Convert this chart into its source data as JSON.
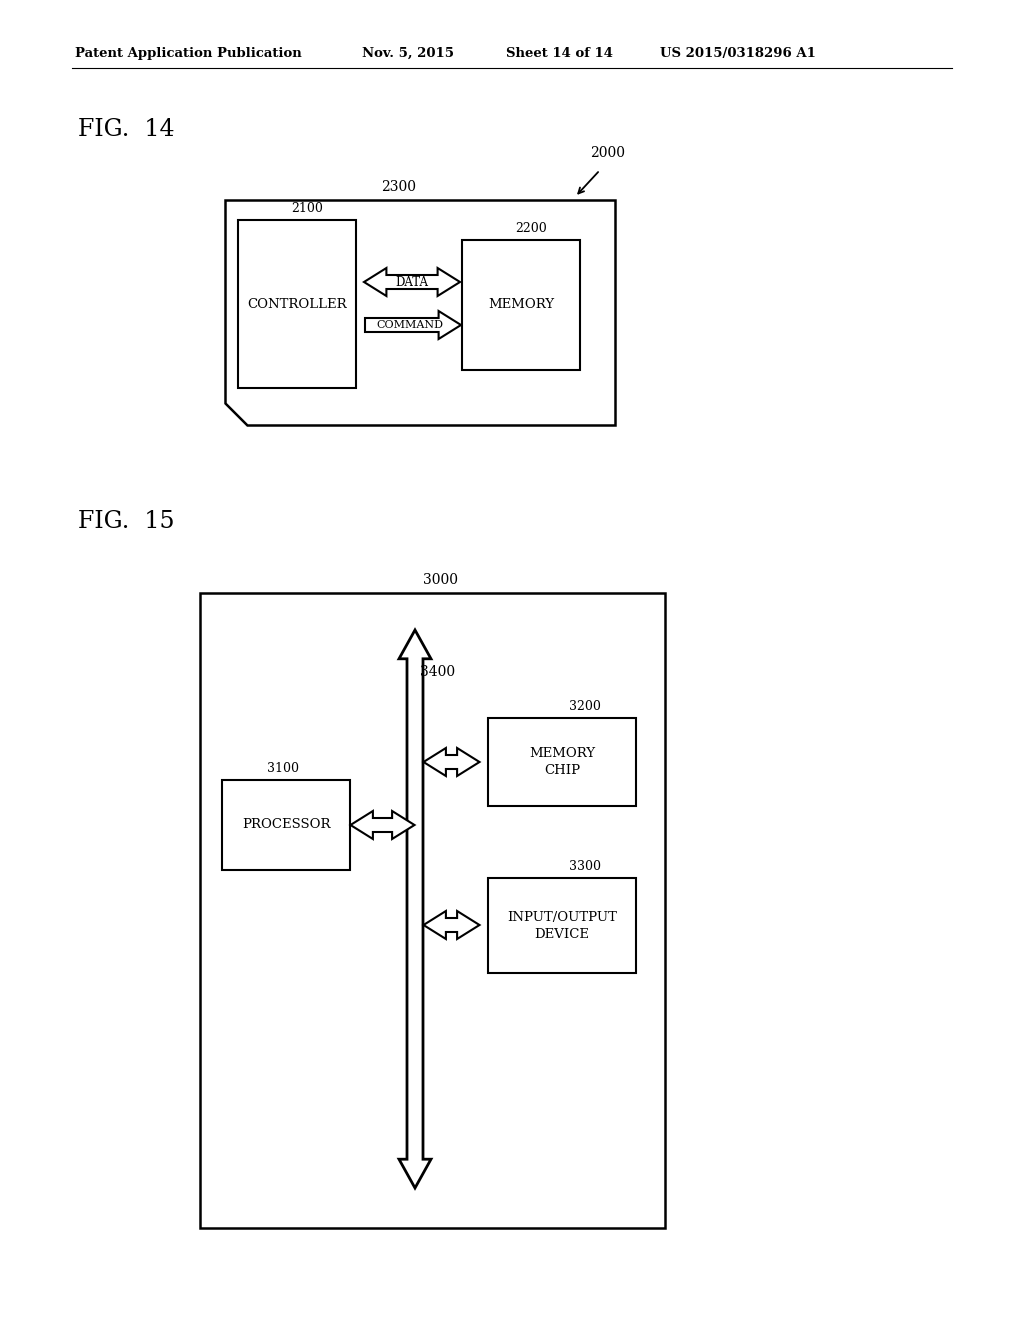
{
  "bg_color": "#ffffff",
  "header_text": "Patent Application Publication",
  "header_date": "Nov. 5, 2015",
  "header_sheet": "Sheet 14 of 14",
  "header_patent": "US 2015/0318296 A1",
  "fig14_label": "FIG.  14",
  "fig14_label_2300": "2300",
  "fig14_label_2000": "2000",
  "fig14_ctrl_label": "CONTROLLER",
  "fig14_ctrl_ref": "2100",
  "fig14_mem_label": "MEMORY",
  "fig14_mem_ref": "2200",
  "fig15_label": "FIG.  15",
  "fig15_label_3000": "3000",
  "fig15_label_3400": "3400",
  "fig15_proc_label": "PROCESSOR",
  "fig15_proc_ref": "3100",
  "fig15_mem_label": "MEMORY\nCHIP",
  "fig15_mem_ref": "3200",
  "fig15_io_label": "INPUT/OUTPUT\nDEVICE",
  "fig15_io_ref": "3300"
}
